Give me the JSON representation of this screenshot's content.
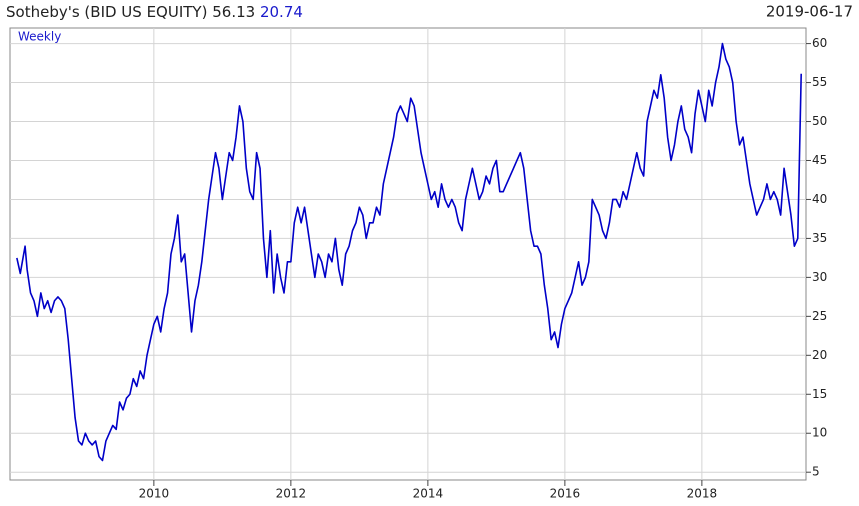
{
  "chart_data": {
    "type": "line",
    "title": "Sotheby's (BID US EQUITY)",
    "last_price": "56.13",
    "change": "20.74",
    "date": "2019-06-17",
    "frequency": "Weekly",
    "xlim": [
      2007.9,
      2019.52
    ],
    "ylim": [
      4,
      62
    ],
    "xticks": [
      2010,
      2012,
      2014,
      2016,
      2018
    ],
    "yticks": [
      5,
      10,
      15,
      20,
      25,
      30,
      35,
      40,
      45,
      50,
      55,
      60
    ],
    "grid": true,
    "series": [
      {
        "name": "BID US EQUITY",
        "color": "#0000c8",
        "x": [
          2008.0,
          2008.05,
          2008.1,
          2008.12,
          2008.15,
          2008.2,
          2008.25,
          2008.3,
          2008.35,
          2008.4,
          2008.45,
          2008.5,
          2008.55,
          2008.6,
          2008.65,
          2008.7,
          2008.75,
          2008.8,
          2008.85,
          2008.9,
          2008.95,
          2009.0,
          2009.05,
          2009.1,
          2009.15,
          2009.2,
          2009.25,
          2009.3,
          2009.35,
          2009.4,
          2009.45,
          2009.5,
          2009.55,
          2009.6,
          2009.65,
          2009.7,
          2009.75,
          2009.8,
          2009.85,
          2009.9,
          2009.95,
          2010.0,
          2010.05,
          2010.1,
          2010.15,
          2010.2,
          2010.25,
          2010.3,
          2010.35,
          2010.4,
          2010.45,
          2010.5,
          2010.55,
          2010.6,
          2010.65,
          2010.7,
          2010.75,
          2010.8,
          2010.85,
          2010.9,
          2010.95,
          2011.0,
          2011.05,
          2011.1,
          2011.15,
          2011.2,
          2011.25,
          2011.3,
          2011.35,
          2011.4,
          2011.45,
          2011.5,
          2011.55,
          2011.6,
          2011.65,
          2011.7,
          2011.75,
          2011.8,
          2011.85,
          2011.9,
          2011.95,
          2012.0,
          2012.05,
          2012.1,
          2012.15,
          2012.2,
          2012.25,
          2012.3,
          2012.35,
          2012.4,
          2012.45,
          2012.5,
          2012.55,
          2012.6,
          2012.65,
          2012.7,
          2012.75,
          2012.8,
          2012.85,
          2012.9,
          2012.95,
          2013.0,
          2013.05,
          2013.1,
          2013.15,
          2013.2,
          2013.25,
          2013.3,
          2013.35,
          2013.4,
          2013.45,
          2013.5,
          2013.55,
          2013.6,
          2013.65,
          2013.7,
          2013.75,
          2013.8,
          2013.85,
          2013.9,
          2013.95,
          2014.0,
          2014.05,
          2014.1,
          2014.15,
          2014.2,
          2014.25,
          2014.3,
          2014.35,
          2014.4,
          2014.45,
          2014.5,
          2014.55,
          2014.6,
          2014.65,
          2014.7,
          2014.75,
          2014.8,
          2014.85,
          2014.9,
          2014.95,
          2015.0,
          2015.05,
          2015.1,
          2015.15,
          2015.2,
          2015.25,
          2015.3,
          2015.35,
          2015.4,
          2015.45,
          2015.5,
          2015.55,
          2015.6,
          2015.65,
          2015.7,
          2015.75,
          2015.8,
          2015.85,
          2015.9,
          2015.95,
          2016.0,
          2016.05,
          2016.1,
          2016.15,
          2016.2,
          2016.25,
          2016.3,
          2016.35,
          2016.4,
          2016.45,
          2016.5,
          2016.55,
          2016.6,
          2016.65,
          2016.7,
          2016.75,
          2016.8,
          2016.85,
          2016.9,
          2016.95,
          2017.0,
          2017.05,
          2017.1,
          2017.15,
          2017.2,
          2017.25,
          2017.3,
          2017.35,
          2017.4,
          2017.45,
          2017.5,
          2017.55,
          2017.6,
          2017.65,
          2017.7,
          2017.75,
          2017.8,
          2017.85,
          2017.9,
          2017.95,
          2018.0,
          2018.05,
          2018.1,
          2018.15,
          2018.2,
          2018.25,
          2018.3,
          2018.35,
          2018.4,
          2018.45,
          2018.5,
          2018.55,
          2018.6,
          2018.65,
          2018.7,
          2018.75,
          2018.8,
          2018.85,
          2018.9,
          2018.95,
          2019.0,
          2019.05,
          2019.1,
          2019.15,
          2019.2,
          2019.25,
          2019.3,
          2019.35,
          2019.4,
          2019.45
        ],
        "values": [
          32.5,
          30.5,
          33,
          34,
          31,
          28,
          27,
          25,
          28,
          26,
          27,
          25.5,
          27,
          27.5,
          27,
          26,
          22,
          17,
          12,
          9,
          8.5,
          10,
          9,
          8.5,
          9,
          7,
          6.5,
          9,
          10,
          11,
          10.5,
          14,
          13,
          14.5,
          15,
          17,
          16,
          18,
          17,
          20,
          22,
          24,
          25,
          23,
          26,
          28,
          33,
          35,
          38,
          32,
          33,
          28,
          23,
          27,
          29,
          32,
          36,
          40,
          43,
          46,
          44,
          40,
          43,
          46,
          45,
          48,
          52,
          50,
          44,
          41,
          40,
          46,
          44,
          35,
          30,
          36,
          28,
          33,
          30,
          28,
          32,
          32,
          37,
          39,
          37,
          39,
          36,
          33,
          30,
          33,
          32,
          30,
          33,
          32,
          35,
          31,
          29,
          33,
          34,
          36,
          37,
          39,
          38,
          35,
          37,
          37,
          39,
          38,
          42,
          44,
          46,
          48,
          51,
          52,
          51,
          50,
          53,
          52,
          49,
          46,
          44,
          42,
          40,
          41,
          39,
          42,
          40,
          39,
          40,
          39,
          37,
          36,
          40,
          42,
          44,
          42,
          40,
          41,
          43,
          42,
          44,
          45,
          41,
          41,
          42,
          43,
          44,
          45,
          46,
          44,
          40,
          36,
          34,
          34,
          33,
          29,
          26,
          22,
          23,
          21,
          24,
          26,
          27,
          28,
          30,
          32,
          29,
          30,
          32,
          40,
          39,
          38,
          36,
          35,
          37,
          40,
          40,
          39,
          41,
          40,
          42,
          44,
          46,
          44,
          43,
          50,
          52,
          54,
          53,
          56,
          53,
          48,
          45,
          47,
          50,
          52,
          49,
          48,
          46,
          51,
          54,
          52,
          50,
          54,
          52,
          55,
          57,
          60,
          58,
          57,
          55,
          50,
          47,
          48,
          45,
          42,
          40,
          38,
          39,
          40,
          42,
          40,
          41,
          40,
          38,
          44,
          41,
          38,
          34,
          35,
          56.13
        ]
      }
    ]
  }
}
